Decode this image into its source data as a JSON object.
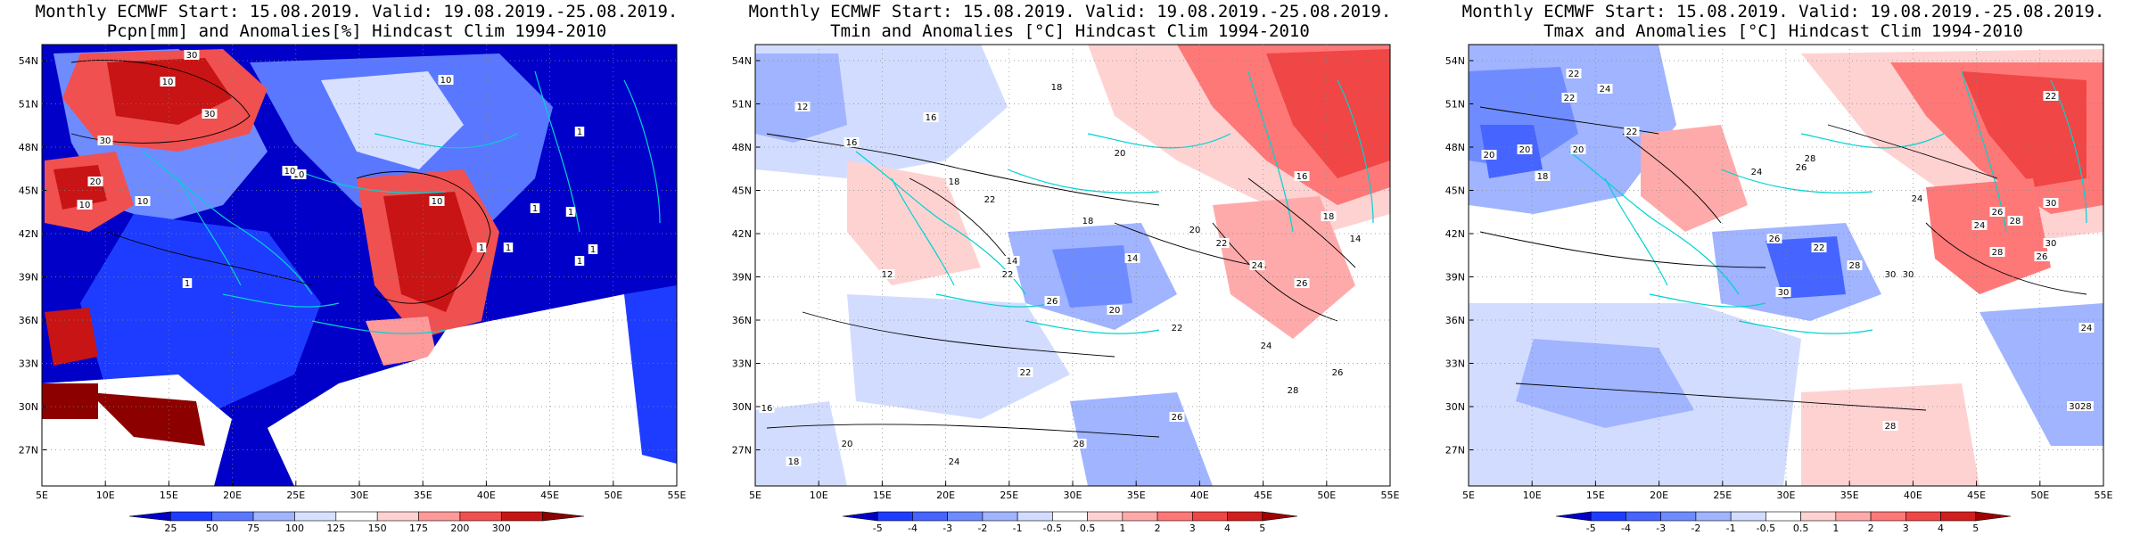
{
  "panels": [
    {
      "title_line1": "Monthly ECMWF Start: 15.08.2019. Valid: 19.08.2019.-25.08.2019.",
      "title_line2": "Pcpn[mm] and Anomalies[%] Hindcast Clim 1994-2010",
      "x_ticks": [
        "5E",
        "10E",
        "15E",
        "20E",
        "25E",
        "30E",
        "35E",
        "40E",
        "45E",
        "50E",
        "55E"
      ],
      "y_ticks": [
        "54N",
        "51N",
        "48N",
        "45N",
        "42N",
        "39N",
        "36N",
        "33N",
        "30N",
        "27N"
      ],
      "colorbar": {
        "labels": [
          "25",
          "50",
          "75",
          "100",
          "125",
          "150",
          "175",
          "200",
          "300"
        ],
        "colors": [
          "#0000c8",
          "#1e3cff",
          "#5a78ff",
          "#a0b4ff",
          "#d8e0ff",
          "#ffffff",
          "#ffd2d2",
          "#ff9a9a",
          "#f05050",
          "#c81414",
          "#8c0000"
        ]
      },
      "contour_labels": [
        "30",
        "30",
        "30",
        "10",
        "10",
        "10",
        "10",
        "10",
        "10",
        "20",
        "10",
        "1",
        "1",
        "1",
        "1",
        "1",
        "1",
        "1",
        "1"
      ]
    },
    {
      "title_line1": "Monthly ECMWF Start: 15.08.2019. Valid: 19.08.2019.-25.08.2019.",
      "title_line2": "Tmin and Anomalies [°C] Hindcast Clim 1994-2010",
      "x_ticks": [
        "5E",
        "10E",
        "15E",
        "20E",
        "25E",
        "30E",
        "35E",
        "40E",
        "45E",
        "50E",
        "55E"
      ],
      "y_ticks": [
        "54N",
        "51N",
        "48N",
        "45N",
        "42N",
        "39N",
        "36N",
        "33N",
        "30N",
        "27N"
      ],
      "colorbar": {
        "labels": [
          "-5",
          "-4",
          "-3",
          "-2",
          "-1",
          "-0.5",
          "0.5",
          "1",
          "2",
          "3",
          "4",
          "5"
        ],
        "colors": [
          "#0000c8",
          "#1e3cff",
          "#4664ff",
          "#6e8cff",
          "#a0b4ff",
          "#d2dcff",
          "#ffffff",
          "#ffd2d2",
          "#ffaaaa",
          "#ff7878",
          "#f04646",
          "#d21e1e",
          "#a00000"
        ]
      },
      "contour_labels": [
        "12",
        "16",
        "16",
        "18",
        "18",
        "20",
        "22",
        "14",
        "12",
        "18",
        "14",
        "20",
        "22",
        "24",
        "26",
        "16",
        "18",
        "14",
        "20",
        "22",
        "24",
        "26",
        "28",
        "22",
        "26",
        "24",
        "28",
        "26",
        "22",
        "20",
        "18",
        "16"
      ]
    },
    {
      "title_line1": "Monthly ECMWF Start: 15.08.2019. Valid: 19.08.2019.-25.08.2019.",
      "title_line2": "Tmax and Anomalies [°C] Hindcast Clim 1994-2010",
      "x_ticks": [
        "5E",
        "10E",
        "15E",
        "20E",
        "25E",
        "30E",
        "35E",
        "40E",
        "45E",
        "50E",
        "55E"
      ],
      "y_ticks": [
        "54N",
        "51N",
        "48N",
        "45N",
        "42N",
        "39N",
        "36N",
        "33N",
        "30N",
        "27N"
      ],
      "colorbar": {
        "labels": [
          "-5",
          "-4",
          "-3",
          "-2",
          "-1",
          "-0.5",
          "0.5",
          "1",
          "2",
          "3",
          "4",
          "5"
        ],
        "colors": [
          "#0000c8",
          "#1e3cff",
          "#4664ff",
          "#6e8cff",
          "#a0b4ff",
          "#d2dcff",
          "#ffffff",
          "#ffd2d2",
          "#ffaaaa",
          "#ff7878",
          "#f04646",
          "#d21e1e",
          "#a00000"
        ]
      },
      "contour_labels": [
        "22",
        "22",
        "24",
        "20",
        "20",
        "18",
        "20",
        "22",
        "24",
        "26",
        "28",
        "26",
        "22",
        "28",
        "30",
        "26",
        "24",
        "28",
        "30",
        "26",
        "30",
        "24",
        "28",
        "30",
        "30",
        "28",
        "3028",
        "24",
        "22"
      ]
    }
  ]
}
